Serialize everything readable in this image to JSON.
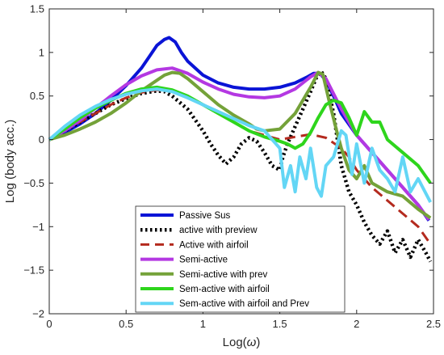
{
  "chart_data": {
    "type": "line",
    "xlabel_main": "Log(",
    "xlabel_symbol": "ω",
    "xlabel_close": ")",
    "ylabel": "Log (body acc.)",
    "xlim": [
      0,
      2.5
    ],
    "ylim": [
      -2,
      1.5
    ],
    "xticks": [
      0,
      0.5,
      1,
      1.5,
      2,
      2.5
    ],
    "yticks": [
      -2,
      -1.5,
      -1,
      -0.5,
      0,
      0.5,
      1,
      1.5
    ],
    "xtick_labels": [
      "0",
      "0.5",
      "1",
      "1.5",
      "2",
      "2.5"
    ],
    "ytick_labels": [
      "−2",
      "−1.5",
      "−1",
      "−0.5",
      "0",
      "0.5",
      "1",
      "1.5"
    ],
    "grid": false,
    "legend_position": "bottom-center",
    "series": [
      {
        "name": "Passive Sus",
        "color": "#0a14d6",
        "style": "solid",
        "x": [
          0,
          0.1,
          0.2,
          0.3,
          0.4,
          0.5,
          0.6,
          0.65,
          0.7,
          0.75,
          0.78,
          0.82,
          0.86,
          0.9,
          1.0,
          1.1,
          1.2,
          1.3,
          1.4,
          1.5,
          1.6,
          1.68,
          1.72,
          1.76,
          1.8,
          1.85,
          1.9,
          2.0,
          2.1,
          2.2,
          2.3,
          2.4,
          2.47
        ],
        "y": [
          0,
          0.08,
          0.18,
          0.3,
          0.45,
          0.62,
          0.82,
          0.95,
          1.08,
          1.15,
          1.17,
          1.12,
          1.0,
          0.9,
          0.74,
          0.65,
          0.6,
          0.58,
          0.58,
          0.6,
          0.65,
          0.72,
          0.76,
          0.76,
          0.68,
          0.5,
          0.3,
          0.05,
          -0.15,
          -0.35,
          -0.55,
          -0.75,
          -0.93
        ]
      },
      {
        "name": "active with preview",
        "color": "#000000",
        "style": "dotted",
        "x": [
          0,
          0.1,
          0.2,
          0.3,
          0.4,
          0.5,
          0.6,
          0.7,
          0.75,
          0.8,
          0.9,
          1.0,
          1.05,
          1.1,
          1.15,
          1.2,
          1.25,
          1.3,
          1.35,
          1.4,
          1.45,
          1.5,
          1.52,
          1.55,
          1.6,
          1.65,
          1.7,
          1.74,
          1.77,
          1.8,
          1.85,
          1.9,
          1.95,
          2.0,
          2.05,
          2.1,
          2.15,
          2.2,
          2.25,
          2.3,
          2.35,
          2.4,
          2.45,
          2.48
        ],
        "y": [
          0,
          0.1,
          0.2,
          0.3,
          0.4,
          0.47,
          0.53,
          0.56,
          0.55,
          0.5,
          0.35,
          0.1,
          -0.05,
          -0.18,
          -0.28,
          -0.2,
          -0.05,
          0.02,
          -0.02,
          -0.15,
          -0.3,
          -0.35,
          -0.2,
          -0.05,
          0.15,
          0.35,
          0.55,
          0.72,
          0.78,
          0.7,
          0.3,
          -0.3,
          -0.6,
          -0.75,
          -0.95,
          -1.1,
          -1.2,
          -1.05,
          -1.3,
          -1.15,
          -1.35,
          -1.15,
          -1.3,
          -1.4
        ]
      },
      {
        "name": "Active with airfoil",
        "color": "#b42a1e",
        "style": "dashed",
        "x": [
          0,
          0.1,
          0.2,
          0.3,
          0.4,
          0.5,
          0.6,
          0.7,
          0.8,
          0.9,
          1.0,
          1.1,
          1.2,
          1.3,
          1.4,
          1.5,
          1.6,
          1.7,
          1.8,
          1.9,
          1.95,
          2.0,
          2.1,
          2.2,
          2.3,
          2.4,
          2.48
        ],
        "y": [
          0,
          0.1,
          0.2,
          0.3,
          0.4,
          0.48,
          0.54,
          0.57,
          0.55,
          0.48,
          0.4,
          0.3,
          0.2,
          0.1,
          0.05,
          0.0,
          0.03,
          0.06,
          0.02,
          -0.1,
          -0.2,
          -0.35,
          -0.55,
          -0.7,
          -0.85,
          -1.0,
          -1.2
        ]
      },
      {
        "name": "Semi-active",
        "color": "#b438e2",
        "style": "solid",
        "x": [
          0,
          0.1,
          0.2,
          0.3,
          0.4,
          0.5,
          0.6,
          0.7,
          0.8,
          0.9,
          1.0,
          1.1,
          1.2,
          1.3,
          1.4,
          1.5,
          1.6,
          1.7,
          1.75,
          1.8,
          1.9,
          2.0,
          2.1,
          2.2,
          2.3,
          2.4,
          2.47
        ],
        "y": [
          0,
          0.1,
          0.22,
          0.36,
          0.5,
          0.63,
          0.73,
          0.8,
          0.82,
          0.76,
          0.66,
          0.58,
          0.52,
          0.49,
          0.48,
          0.5,
          0.58,
          0.72,
          0.77,
          0.7,
          0.35,
          0.05,
          -0.15,
          -0.35,
          -0.55,
          -0.75,
          -0.92
        ]
      },
      {
        "name": "Semi-active with prev",
        "color": "#74a239",
        "style": "solid",
        "x": [
          0,
          0.1,
          0.2,
          0.3,
          0.4,
          0.5,
          0.6,
          0.7,
          0.75,
          0.8,
          0.85,
          0.9,
          1.0,
          1.1,
          1.2,
          1.3,
          1.35,
          1.4,
          1.5,
          1.6,
          1.7,
          1.75,
          1.78,
          1.82,
          1.87,
          1.9,
          1.95,
          2.0,
          2.05,
          2.1,
          2.2,
          2.3,
          2.4,
          2.48
        ],
        "y": [
          0,
          0.05,
          0.12,
          0.2,
          0.3,
          0.42,
          0.56,
          0.68,
          0.74,
          0.77,
          0.76,
          0.7,
          0.55,
          0.4,
          0.28,
          0.18,
          0.12,
          0.1,
          0.12,
          0.3,
          0.6,
          0.77,
          0.75,
          0.45,
          0.1,
          -0.1,
          -0.35,
          -0.45,
          -0.3,
          -0.5,
          -0.6,
          -0.65,
          -0.8,
          -0.9
        ]
      },
      {
        "name": "Sem-active with airfoil",
        "color": "#2ed51c",
        "style": "solid",
        "x": [
          0,
          0.1,
          0.2,
          0.3,
          0.4,
          0.5,
          0.6,
          0.7,
          0.8,
          0.9,
          1.0,
          1.1,
          1.2,
          1.3,
          1.4,
          1.5,
          1.55,
          1.6,
          1.65,
          1.7,
          1.75,
          1.8,
          1.85,
          1.9,
          1.95,
          2.0,
          2.05,
          2.1,
          2.15,
          2.2,
          2.3,
          2.4,
          2.48
        ],
        "y": [
          0,
          0.12,
          0.25,
          0.36,
          0.45,
          0.53,
          0.58,
          0.6,
          0.57,
          0.5,
          0.4,
          0.3,
          0.2,
          0.1,
          0.03,
          -0.02,
          -0.05,
          -0.1,
          -0.05,
          0.08,
          0.25,
          0.4,
          0.45,
          0.42,
          0.25,
          0.05,
          0.32,
          0.2,
          0.2,
          0.0,
          -0.15,
          -0.3,
          -0.5
        ]
      },
      {
        "name": "Sem-active with airfoil and Prev",
        "color": "#63d6f5",
        "style": "solid",
        "x": [
          0,
          0.1,
          0.2,
          0.3,
          0.4,
          0.5,
          0.6,
          0.7,
          0.8,
          0.9,
          1.0,
          1.1,
          1.2,
          1.3,
          1.4,
          1.5,
          1.53,
          1.57,
          1.6,
          1.63,
          1.67,
          1.7,
          1.74,
          1.77,
          1.8,
          1.85,
          1.9,
          1.93,
          1.97,
          2.0,
          2.05,
          2.1,
          2.15,
          2.2,
          2.25,
          2.3,
          2.35,
          2.4,
          2.48
        ],
        "y": [
          0,
          0.15,
          0.28,
          0.38,
          0.46,
          0.52,
          0.56,
          0.58,
          0.55,
          0.48,
          0.4,
          0.32,
          0.24,
          0.16,
          0.1,
          -0.1,
          -0.55,
          -0.3,
          -0.6,
          -0.2,
          -0.45,
          -0.1,
          -0.55,
          -0.65,
          -0.3,
          -0.2,
          0.1,
          0.05,
          -0.4,
          -0.05,
          -0.5,
          -0.1,
          -0.35,
          -0.45,
          -0.6,
          -0.2,
          -0.6,
          -0.45,
          -0.72
        ]
      }
    ]
  }
}
